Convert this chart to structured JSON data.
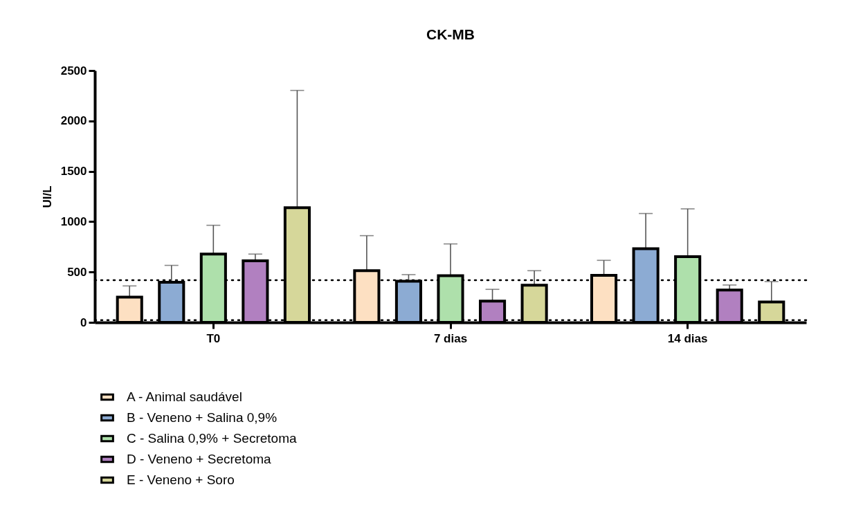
{
  "chart_data": {
    "type": "bar",
    "title": "CK-MB",
    "ylabel": "UI/L",
    "categories": [
      "T0",
      "7 dias",
      "14 dias"
    ],
    "series": [
      {
        "name": "A - Animal saudável",
        "color": "#fde0c2",
        "values": [
          250,
          513,
          467
        ],
        "errors": [
          [
            250,
            362
          ],
          [
            513,
            861
          ],
          [
            467,
            616
          ]
        ]
      },
      {
        "name": "B - Veneno + Salina 0,9%",
        "color": "#8cabd3",
        "values": [
          398,
          408,
          731
        ],
        "errors": [
          [
            398,
            566
          ],
          [
            408,
            474
          ],
          [
            731,
            1081
          ]
        ]
      },
      {
        "name": "C - Salina 0,9% + Secretoma",
        "color": "#aee0ab",
        "values": [
          678,
          463,
          653
        ],
        "errors": [
          [
            678,
            964
          ],
          [
            463,
            779
          ],
          [
            653,
            1127
          ]
        ]
      },
      {
        "name": "D - Veneno + Secretoma",
        "color": "#b180c0",
        "values": [
          611,
          211,
          321
        ],
        "errors": [
          [
            611,
            678
          ],
          [
            211,
            328
          ],
          [
            321,
            371
          ]
        ]
      },
      {
        "name": "E - Veneno + Soro",
        "color": "#d6d79a",
        "values": [
          1138,
          369,
          202
        ],
        "errors": [
          [
            1138,
            2303
          ],
          [
            369,
            513
          ],
          [
            202,
            405
          ]
        ]
      }
    ],
    "ylim": [
      0,
      2500
    ],
    "yticks": [
      0,
      500,
      1000,
      1500,
      2000,
      2500
    ],
    "ref_lines": [
      {
        "axis": "y",
        "value": 419,
        "line_style": "dotted"
      },
      {
        "axis": "y",
        "value": 23,
        "line_style": "dotted"
      }
    ],
    "legend": "bottom left",
    "grid": false
  }
}
